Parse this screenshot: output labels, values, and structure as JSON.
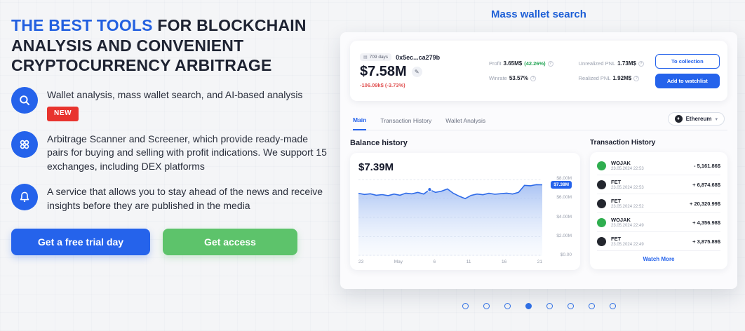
{
  "colors": {
    "accent": "#2563eb",
    "green": "#5dc36b",
    "red_badge": "#e8342e",
    "negative": "#e05252",
    "positive": "#23a454"
  },
  "hero": {
    "title_highlight": "THE BEST TOOLS",
    "title_rest": " FOR BLOCKCHAIN ANALYSIS AND CONVENIENT CRYPTOCURRENCY ARBITRAGE",
    "features": [
      {
        "icon": "magnifier-icon",
        "text": "Wallet analysis, mass wallet search, and AI-based analysis",
        "badge": "NEW"
      },
      {
        "icon": "screener-icon",
        "text": "Arbitrage Scanner and Screener, which provide ready-made pairs for buying and selling with profit indications. We support 15 exchanges, including DEX platforms"
      },
      {
        "icon": "bell-icon",
        "text": "A service that allows you to stay ahead of the news and receive insights before they are published in the media"
      }
    ],
    "cta_primary": "Get a free trial day",
    "cta_secondary": "Get access"
  },
  "panel": {
    "title": "Mass wallet search",
    "header": {
      "days_badge": "709 days",
      "address": "0x5ec...ca279b",
      "balance": "$7.58M",
      "change": "-106.09k$ (-3.73%)",
      "stats": [
        {
          "label": "Profit",
          "value": "3.65M$",
          "extra": "(42.26%)"
        },
        {
          "label": "Unrealized PNL",
          "value": "1.73M$"
        },
        {
          "label": "Winrate",
          "value": "53.57%"
        },
        {
          "label": "Realized PNL",
          "value": "1.92M$"
        }
      ],
      "btn_collection": "To collection",
      "btn_watchlist": "Add to watchlist"
    },
    "tabs": [
      {
        "label": "Main",
        "active": true
      },
      {
        "label": "Transaction History",
        "active": false
      },
      {
        "label": "Wallet Analysis",
        "active": false
      }
    ],
    "network": "Ethereum",
    "balance_history": {
      "title": "Balance history",
      "value": "$7.39M",
      "chart": {
        "type": "area",
        "ymax": 8,
        "current_value": 7.38,
        "current_label": "$7.38M",
        "y_ticks": [
          "$8.00M",
          "$6.00M",
          "$4.00M",
          "$2.00M",
          "$0.00"
        ],
        "x_labels": [
          "23",
          "May",
          "6",
          "11",
          "16",
          "21"
        ],
        "values": [
          6.5,
          6.38,
          6.45,
          6.3,
          6.36,
          6.26,
          6.42,
          6.3,
          6.52,
          6.44,
          6.6,
          6.42,
          6.88,
          6.6,
          6.72,
          6.95,
          6.5,
          6.2,
          5.95,
          6.28,
          6.42,
          6.35,
          6.5,
          6.4,
          6.46,
          6.52,
          6.42,
          6.6,
          7.32,
          7.28,
          7.4,
          7.38
        ],
        "marker_index": 12
      }
    },
    "transactions": {
      "title": "Transaction History",
      "rows": [
        {
          "token": "WOJAK",
          "date": "23.05.2024 22:53",
          "amount": "- 5,161.86$",
          "color": "#2fae4f"
        },
        {
          "token": "FET",
          "date": "23.05.2024 22:53",
          "amount": "+ 6,874.68$",
          "color": "#23262e"
        },
        {
          "token": "FET",
          "date": "23.05.2024 22:52",
          "amount": "+ 20,320.99$",
          "color": "#23262e"
        },
        {
          "token": "WOJAK",
          "date": "23.05.2024 22:49",
          "amount": "+ 4,356.98$",
          "color": "#2fae4f"
        },
        {
          "token": "FET",
          "date": "23.05.2024 22:49",
          "amount": "+ 3,875.89$",
          "color": "#23262e"
        }
      ],
      "more": "Watch More"
    }
  },
  "pagination": {
    "count": 8,
    "active": 3
  }
}
